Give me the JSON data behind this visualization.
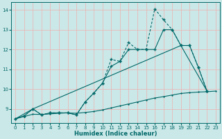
{
  "xlabel": "Humidex (Indice chaleur)",
  "bg_color": "#cbe8e8",
  "grid_color": "#e8b8b8",
  "line_color": "#006868",
  "xlim": [
    -0.5,
    23.5
  ],
  "ylim": [
    8.3,
    14.4
  ],
  "yticks": [
    9,
    10,
    11,
    12,
    13,
    14
  ],
  "xticks": [
    0,
    1,
    2,
    3,
    4,
    5,
    6,
    7,
    8,
    9,
    10,
    11,
    12,
    13,
    14,
    15,
    16,
    17,
    18,
    19,
    20,
    21,
    22,
    23
  ],
  "line1_x": [
    0,
    1,
    2,
    3,
    4,
    5,
    6,
    7,
    8,
    9,
    10,
    11,
    12,
    13,
    14,
    15,
    16,
    17,
    18,
    19,
    20,
    21,
    22,
    23
  ],
  "line1_y": [
    8.5,
    8.65,
    9.0,
    8.7,
    8.8,
    8.8,
    8.8,
    8.7,
    9.35,
    9.8,
    10.3,
    11.5,
    11.4,
    12.35,
    12.0,
    12.0,
    14.05,
    13.5,
    13.0,
    12.2,
    12.2,
    11.1,
    9.9,
    null
  ],
  "line2_x": [
    0,
    1,
    2,
    3,
    4,
    5,
    6,
    7,
    8,
    9,
    10,
    11,
    12,
    13,
    14,
    15,
    16,
    17,
    18,
    19,
    20,
    21,
    22,
    23
  ],
  "line2_y": [
    8.5,
    8.65,
    9.0,
    8.7,
    8.8,
    8.8,
    8.8,
    8.7,
    9.35,
    9.8,
    10.3,
    11.15,
    11.4,
    12.0,
    12.0,
    12.0,
    12.0,
    13.0,
    13.0,
    12.2,
    12.2,
    11.1,
    9.9,
    null
  ],
  "line3_x": [
    0,
    2,
    19,
    22
  ],
  "line3_y": [
    8.5,
    9.0,
    12.2,
    9.9
  ],
  "line4_x": [
    0,
    1,
    2,
    3,
    4,
    5,
    6,
    7,
    8,
    9,
    10,
    11,
    12,
    13,
    14,
    15,
    16,
    17,
    18,
    19,
    20,
    21,
    22,
    23
  ],
  "line4_y": [
    8.5,
    8.62,
    8.73,
    8.72,
    8.75,
    8.78,
    8.8,
    8.78,
    8.82,
    8.87,
    8.95,
    9.05,
    9.15,
    9.25,
    9.35,
    9.45,
    9.55,
    9.62,
    9.7,
    9.78,
    9.82,
    9.85,
    9.87,
    9.9
  ]
}
